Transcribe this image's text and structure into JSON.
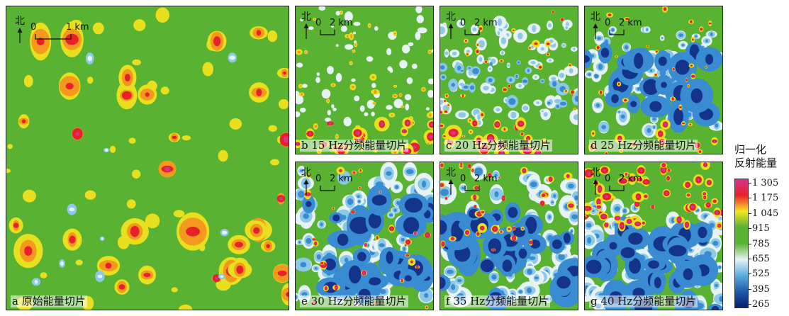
{
  "north_label": "北",
  "panels": [
    {
      "id": "a",
      "label": "a 原始能量切片",
      "scale_zero": "0",
      "scale_max": "1 km",
      "palette": "orig"
    },
    {
      "id": "b",
      "label": "b 15 Hz分频能量切片",
      "scale_zero": "0",
      "scale_max": "2 km",
      "palette": "b"
    },
    {
      "id": "c",
      "label": "c 20 Hz分频能量切片",
      "scale_zero": "0",
      "scale_max": "2 km",
      "palette": "c"
    },
    {
      "id": "d",
      "label": "d 25 Hz分频能量切片",
      "scale_zero": "0",
      "scale_max": "2 km",
      "palette": "d"
    },
    {
      "id": "e",
      "label": "e 30 Hz分频能量切片",
      "scale_zero": "0",
      "scale_max": "2 km",
      "palette": "e"
    },
    {
      "id": "f",
      "label": "f 35 Hz分频能量切片",
      "scale_zero": "0",
      "scale_max": "2 km",
      "palette": "f"
    },
    {
      "id": "g",
      "label": "g 40 Hz分频能量切片",
      "scale_zero": "0",
      "scale_max": "2 km",
      "palette": "g"
    }
  ],
  "legend": {
    "title_line1": "归一化",
    "title_line2": "反射能量",
    "ticks": [
      "1 305",
      "1 175",
      "1 045",
      "915",
      "785",
      "655",
      "525",
      "395",
      "265"
    ],
    "colors": [
      "#d0368c",
      "#e8202a",
      "#f5e61e",
      "#5ab232",
      "#5ab232",
      "#e6f2f4",
      "#5aaee0",
      "#1e5aa8",
      "#0a1e6e"
    ]
  }
}
